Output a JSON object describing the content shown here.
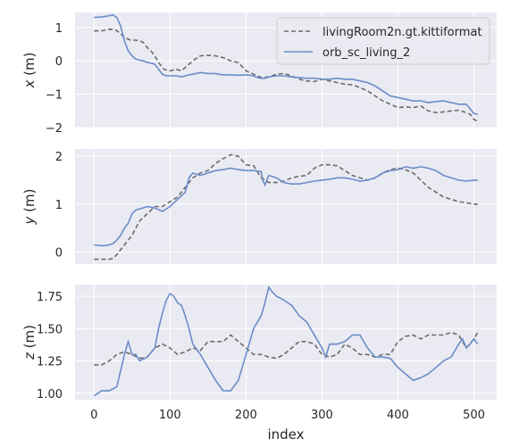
{
  "colors": {
    "gt": "#6b6b6b",
    "estimate": "#6b8cc8",
    "background": "#eaeaf2",
    "grid": "#ffffff"
  },
  "chart_data": {
    "type": "line",
    "xlabel": "index",
    "xlim": [
      -25,
      530
    ],
    "xticks": [
      0,
      100,
      200,
      300,
      400,
      500
    ],
    "legend": {
      "placement": "top-right",
      "entries": [
        "livingRoom2n.gt.kittiformat",
        "orb_sc_living_2"
      ]
    },
    "grid": true,
    "panels": [
      {
        "ylabel": "x (m)",
        "ylim": [
          -2.0,
          1.45
        ],
        "yticks": [
          1,
          0,
          -1,
          -2
        ],
        "series": [
          {
            "name": "livingRoom2n.gt.kittiformat",
            "style": "dashed",
            "x": [
              0,
              10,
              20,
              28,
              33,
              40,
              48,
              55,
              60,
              65,
              70,
              75,
              80,
              85,
              92,
              100,
              108,
              115,
              120,
              130,
              140,
              150,
              160,
              170,
              180,
              190,
              200,
              210,
              220,
              230,
              240,
              250,
              260,
              270,
              280,
              290,
              300,
              310,
              320,
              330,
              340,
              350,
              360,
              370,
              380,
              390,
              400,
              410,
              420,
              430,
              440,
              450,
              460,
              470,
              480,
              490,
              495,
              500,
              505
            ],
            "y": [
              0.9,
              0.9,
              0.95,
              0.93,
              0.85,
              0.7,
              0.62,
              0.62,
              0.6,
              0.55,
              0.4,
              0.3,
              0.15,
              -0.05,
              -0.25,
              -0.3,
              -0.25,
              -0.3,
              -0.2,
              0.0,
              0.15,
              0.17,
              0.15,
              0.1,
              0.0,
              -0.05,
              -0.3,
              -0.4,
              -0.5,
              -0.48,
              -0.4,
              -0.38,
              -0.45,
              -0.55,
              -0.6,
              -0.62,
              -0.55,
              -0.6,
              -0.65,
              -0.7,
              -0.72,
              -0.8,
              -0.9,
              -1.05,
              -1.2,
              -1.3,
              -1.4,
              -1.38,
              -1.4,
              -1.35,
              -1.5,
              -1.55,
              -1.53,
              -1.5,
              -1.48,
              -1.55,
              -1.6,
              -1.75,
              -1.82
            ]
          },
          {
            "name": "orb_sc_living_2",
            "style": "solid",
            "x": [
              0,
              10,
              20,
              25,
              30,
              35,
              40,
              45,
              50,
              55,
              60,
              65,
              70,
              75,
              80,
              85,
              90,
              95,
              100,
              108,
              115,
              120,
              125,
              130,
              140,
              150,
              160,
              170,
              180,
              190,
              200,
              210,
              215,
              220,
              225,
              230,
              240,
              250,
              260,
              270,
              280,
              290,
              300,
              310,
              320,
              330,
              340,
              350,
              360,
              370,
              380,
              390,
              400,
              410,
              420,
              430,
              440,
              450,
              460,
              470,
              480,
              490,
              500,
              505
            ],
            "y": [
              1.3,
              1.32,
              1.35,
              1.38,
              1.3,
              1.05,
              0.6,
              0.3,
              0.15,
              0.05,
              0.02,
              0.0,
              -0.05,
              -0.07,
              -0.1,
              -0.25,
              -0.4,
              -0.45,
              -0.45,
              -0.45,
              -0.48,
              -0.45,
              -0.42,
              -0.4,
              -0.35,
              -0.38,
              -0.38,
              -0.42,
              -0.42,
              -0.43,
              -0.42,
              -0.45,
              -0.5,
              -0.52,
              -0.52,
              -0.48,
              -0.45,
              -0.45,
              -0.48,
              -0.5,
              -0.52,
              -0.52,
              -0.55,
              -0.55,
              -0.52,
              -0.55,
              -0.55,
              -0.6,
              -0.65,
              -0.75,
              -0.9,
              -1.05,
              -1.1,
              -1.15,
              -1.2,
              -1.2,
              -1.25,
              -1.22,
              -1.2,
              -1.25,
              -1.3,
              -1.3,
              -1.58,
              -1.6
            ]
          }
        ]
      },
      {
        "ylabel": "y (m)",
        "ylim": [
          -0.25,
          2.15
        ],
        "yticks": [
          2,
          1,
          0
        ],
        "series": [
          {
            "name": "livingRoom2n.gt.kittiformat",
            "style": "dashed",
            "x": [
              0,
              10,
              20,
              25,
              30,
              35,
              40,
              45,
              50,
              55,
              60,
              70,
              80,
              90,
              100,
              110,
              120,
              130,
              140,
              150,
              160,
              170,
              180,
              190,
              200,
              210,
              220,
              230,
              240,
              250,
              260,
              270,
              280,
              290,
              300,
              310,
              320,
              330,
              340,
              350,
              360,
              370,
              380,
              390,
              400,
              410,
              420,
              430,
              440,
              450,
              460,
              470,
              480,
              490,
              500,
              505
            ],
            "y": [
              -0.15,
              -0.15,
              -0.15,
              -0.13,
              -0.05,
              0.05,
              0.15,
              0.25,
              0.35,
              0.5,
              0.65,
              0.8,
              0.95,
              0.95,
              1.05,
              1.15,
              1.35,
              1.55,
              1.65,
              1.7,
              1.85,
              1.95,
              2.03,
              2.0,
              1.82,
              1.8,
              1.55,
              1.45,
              1.45,
              1.48,
              1.55,
              1.58,
              1.6,
              1.75,
              1.82,
              1.82,
              1.8,
              1.7,
              1.6,
              1.55,
              1.5,
              1.55,
              1.65,
              1.72,
              1.75,
              1.72,
              1.65,
              1.5,
              1.35,
              1.25,
              1.15,
              1.1,
              1.05,
              1.03,
              1.0,
              1.0
            ]
          },
          {
            "name": "orb_sc_living_2",
            "style": "solid",
            "x": [
              0,
              10,
              20,
              25,
              30,
              35,
              40,
              45,
              50,
              55,
              60,
              70,
              80,
              90,
              100,
              110,
              120,
              125,
              130,
              140,
              150,
              160,
              170,
              180,
              190,
              200,
              210,
              220,
              222,
              225,
              230,
              240,
              250,
              260,
              270,
              280,
              290,
              300,
              310,
              320,
              330,
              340,
              350,
              360,
              370,
              380,
              390,
              400,
              410,
              420,
              430,
              440,
              450,
              460,
              470,
              480,
              490,
              500,
              505
            ],
            "y": [
              0.15,
              0.13,
              0.15,
              0.18,
              0.25,
              0.35,
              0.5,
              0.6,
              0.8,
              0.88,
              0.9,
              0.95,
              0.92,
              0.85,
              0.95,
              1.1,
              1.25,
              1.55,
              1.65,
              1.6,
              1.65,
              1.7,
              1.72,
              1.75,
              1.72,
              1.7,
              1.7,
              1.68,
              1.5,
              1.4,
              1.6,
              1.55,
              1.45,
              1.42,
              1.42,
              1.45,
              1.48,
              1.5,
              1.52,
              1.55,
              1.55,
              1.52,
              1.48,
              1.5,
              1.55,
              1.65,
              1.7,
              1.72,
              1.78,
              1.75,
              1.78,
              1.75,
              1.7,
              1.6,
              1.55,
              1.5,
              1.48,
              1.5,
              1.5
            ]
          }
        ]
      },
      {
        "ylabel": "z (m)",
        "ylim": [
          0.95,
          1.84
        ],
        "yticks": [
          1.75,
          1.5,
          1.25,
          1.0
        ],
        "ytick_labels": [
          "1.75",
          "1.50",
          "1.25",
          "1.00"
        ],
        "series": [
          {
            "name": "livingRoom2n.gt.kittiformat",
            "style": "dashed",
            "x": [
              0,
              10,
              20,
              30,
              40,
              50,
              60,
              70,
              80,
              90,
              100,
              110,
              120,
              130,
              140,
              150,
              160,
              170,
              180,
              190,
              200,
              210,
              220,
              230,
              240,
              250,
              260,
              270,
              280,
              290,
              300,
              310,
              320,
              330,
              340,
              350,
              360,
              370,
              380,
              390,
              400,
              410,
              420,
              430,
              440,
              450,
              460,
              470,
              480,
              490,
              500,
              505
            ],
            "y": [
              1.22,
              1.22,
              1.25,
              1.3,
              1.32,
              1.3,
              1.27,
              1.28,
              1.35,
              1.38,
              1.35,
              1.3,
              1.32,
              1.35,
              1.33,
              1.4,
              1.4,
              1.4,
              1.45,
              1.4,
              1.35,
              1.3,
              1.3,
              1.28,
              1.27,
              1.3,
              1.35,
              1.4,
              1.4,
              1.38,
              1.3,
              1.28,
              1.3,
              1.38,
              1.35,
              1.3,
              1.3,
              1.28,
              1.3,
              1.3,
              1.4,
              1.44,
              1.45,
              1.42,
              1.45,
              1.45,
              1.45,
              1.47,
              1.45,
              1.35,
              1.42,
              1.47
            ]
          },
          {
            "name": "orb_sc_living_2",
            "style": "solid",
            "x": [
              0,
              5,
              10,
              20,
              30,
              40,
              45,
              50,
              55,
              60,
              70,
              80,
              85,
              90,
              95,
              100,
              105,
              110,
              115,
              120,
              125,
              130,
              140,
              150,
              160,
              170,
              180,
              190,
              200,
              210,
              215,
              220,
              225,
              230,
              235,
              240,
              250,
              260,
              270,
              280,
              290,
              300,
              305,
              310,
              320,
              330,
              340,
              350,
              360,
              370,
              380,
              390,
              400,
              410,
              420,
              430,
              440,
              450,
              460,
              470,
              480,
              485,
              490,
              495,
              500,
              505
            ],
            "y": [
              0.98,
              1.0,
              1.02,
              1.02,
              1.05,
              1.3,
              1.4,
              1.3,
              1.3,
              1.25,
              1.28,
              1.35,
              1.5,
              1.62,
              1.72,
              1.77,
              1.75,
              1.7,
              1.68,
              1.6,
              1.5,
              1.38,
              1.3,
              1.2,
              1.1,
              1.02,
              1.02,
              1.1,
              1.3,
              1.5,
              1.55,
              1.6,
              1.7,
              1.82,
              1.78,
              1.75,
              1.72,
              1.68,
              1.6,
              1.55,
              1.45,
              1.35,
              1.28,
              1.38,
              1.38,
              1.4,
              1.45,
              1.45,
              1.35,
              1.28,
              1.28,
              1.27,
              1.2,
              1.15,
              1.1,
              1.12,
              1.15,
              1.2,
              1.25,
              1.28,
              1.38,
              1.42,
              1.35,
              1.38,
              1.42,
              1.38
            ]
          }
        ]
      }
    ]
  }
}
